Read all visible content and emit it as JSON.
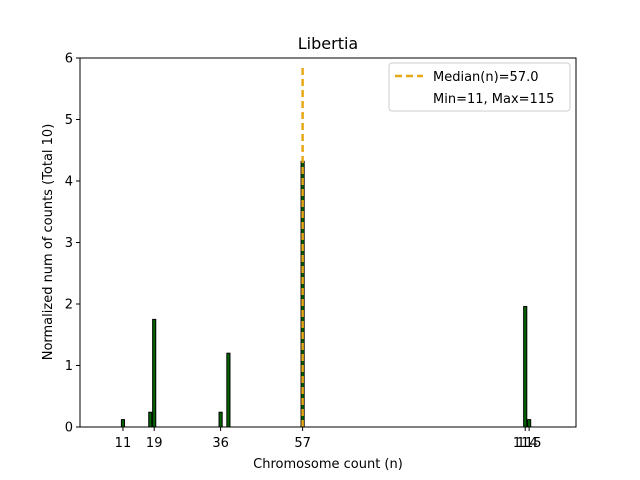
{
  "chart_data": {
    "type": "bar",
    "title": "Libertia",
    "xlabel": "Chromosome count (n)",
    "ylabel": "Normalized num of counts      (Total 10)",
    "xlim": [
      0,
      127
    ],
    "ylim": [
      0,
      6
    ],
    "yticks": [
      0,
      1,
      2,
      3,
      4,
      5,
      6
    ],
    "xticks": [
      11,
      19,
      36,
      57,
      114,
      115
    ],
    "bar_width": 0.8,
    "bar_color": "#006400",
    "bar_edge": "#000000",
    "bars": [
      {
        "x": 11,
        "value": 0.12
      },
      {
        "x": 18,
        "value": 0.24
      },
      {
        "x": 19,
        "value": 1.75
      },
      {
        "x": 36,
        "value": 0.24
      },
      {
        "x": 38,
        "value": 1.2
      },
      {
        "x": 57,
        "value": 4.32
      },
      {
        "x": 114,
        "value": 1.96
      },
      {
        "x": 115,
        "value": 0.12
      }
    ],
    "median": 57.0,
    "median_color": "#E6A817",
    "legend": {
      "placement": "top-right",
      "entries": [
        "Median(n)=57.0",
        "Min=11, Max=115"
      ]
    }
  }
}
